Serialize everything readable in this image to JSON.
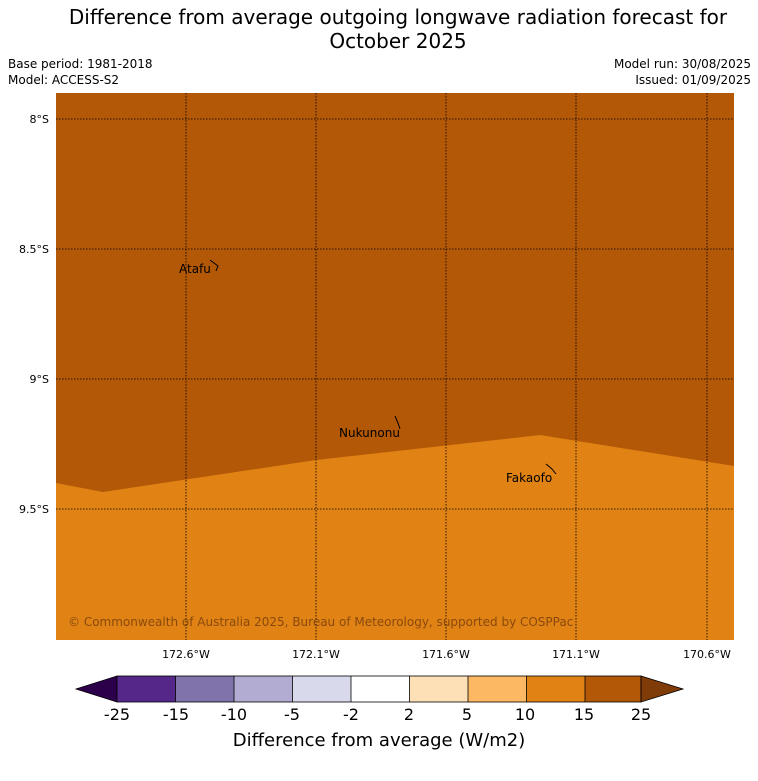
{
  "title": {
    "line1": "Difference from average outgoing longwave radiation forecast for",
    "line2": "October 2025"
  },
  "meta": {
    "base_period": "Base period: 1981-2018",
    "model": "Model: ACCESS-S2",
    "model_run": "Model run: 30/08/2025",
    "issued": "Issued: 01/09/2025"
  },
  "map": {
    "lat_ticks": [
      "8°S",
      "8.5°S",
      "9°S",
      "9.5°S"
    ],
    "lon_ticks": [
      "172.6°W",
      "172.1°W",
      "171.6°W",
      "171.1°W",
      "170.6°W"
    ],
    "places": [
      {
        "name": "Atafu"
      },
      {
        "name": "Nukunonu"
      },
      {
        "name": "Fakaofo"
      }
    ],
    "regions": [
      {
        "category": "15 to 25",
        "color": "#b35806"
      },
      {
        "category": "10 to 15",
        "color": "#e08214"
      }
    ],
    "copyright": "© Commonwealth of Australia 2025, Bureau of Meteorology, supported by COSPPac"
  },
  "colorbar": {
    "ticks": [
      "-25",
      "-15",
      "-10",
      "-5",
      "-2",
      "2",
      "5",
      "10",
      "15",
      "25"
    ],
    "colors": [
      "#542788",
      "#8073ac",
      "#b2abd2",
      "#d8daeb",
      "#ffffff",
      "#fee0b6",
      "#fdb863",
      "#e08214",
      "#b35806"
    ],
    "extend_low_color": "#2d004b",
    "extend_high_color": "#7f3b08",
    "title": "Difference from average (W/m2)"
  }
}
